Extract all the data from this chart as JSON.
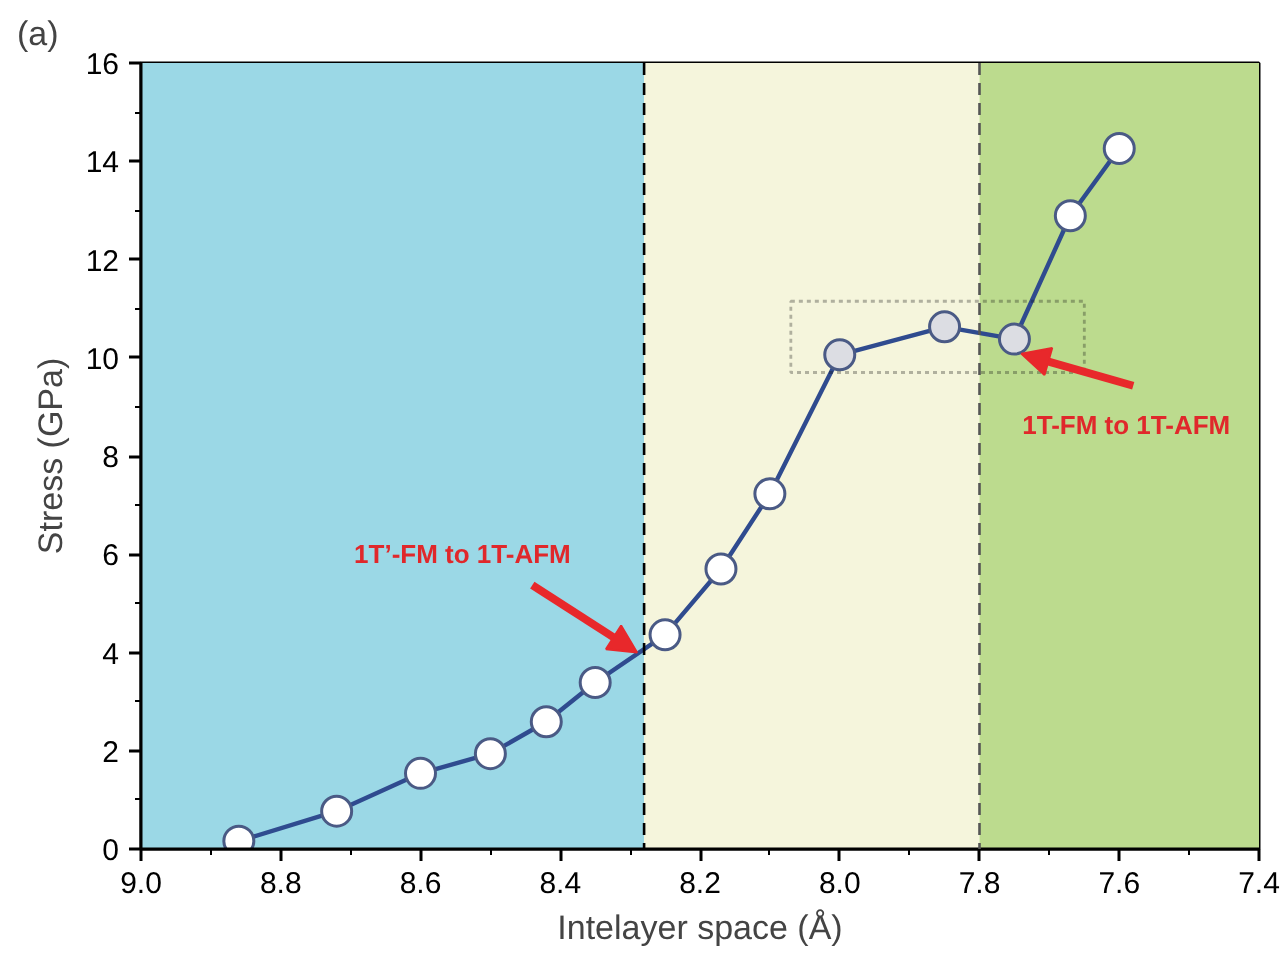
{
  "chart_data": {
    "type": "line",
    "xlabel": "Intelayer space (Å)",
    "ylabel": "Stress (GPa)",
    "x": [
      8.86,
      8.72,
      8.6,
      8.5,
      8.42,
      8.35,
      8.25,
      8.17,
      8.1,
      8.0,
      7.85,
      7.75,
      7.67,
      7.6
    ],
    "series": [
      {
        "color": "#2f4b8f",
        "values": [
          0.16,
          0.77,
          1.54,
          1.94,
          2.59,
          3.39,
          4.36,
          5.7,
          7.23,
          10.06,
          10.63,
          10.38,
          12.89,
          14.26
        ],
        "colors": [
          "#ffffff",
          "#ffffff",
          "#ffffff",
          "#ffffff",
          "#ffffff",
          "#ffffff",
          "#ffffff",
          "#ffffff",
          "#ffffff",
          "#dcdde3",
          "#dcdde3",
          "#dcdde3",
          "#ffffff",
          "#ffffff"
        ]
      }
    ],
    "marker": "circle",
    "line_style": "solid",
    "xlim": [
      9.0,
      7.4
    ],
    "ylim": [
      0,
      16
    ],
    "xticks": [
      {
        "value": 9.0,
        "label": "9.0"
      },
      {
        "value": 8.8,
        "label": "8.8"
      },
      {
        "value": 8.6,
        "label": "8.6"
      },
      {
        "value": 8.4,
        "label": "8.4"
      },
      {
        "value": 8.2,
        "label": "8.2"
      },
      {
        "value": 8.0,
        "label": "8.0"
      },
      {
        "value": 7.8,
        "label": "7.8"
      },
      {
        "value": 7.6,
        "label": "7.6"
      },
      {
        "value": 7.4,
        "label": "7.4"
      }
    ],
    "yticks": [
      0,
      2,
      4,
      6,
      8,
      10,
      12,
      14,
      16
    ],
    "bands": [
      {
        "axis": "x",
        "from": 9.0,
        "to": 8.28,
        "color": "#9bd8e6"
      },
      {
        "axis": "x",
        "from": 8.28,
        "to": 7.8,
        "color": "#f5f5dc"
      },
      {
        "axis": "x",
        "from": 7.8,
        "to": 7.4,
        "color": "#bcdb8e"
      }
    ],
    "ref_lines": [
      {
        "axis": "x",
        "value": 8.28,
        "line_style": "dashed",
        "color": "#000000"
      },
      {
        "axis": "x",
        "value": 7.8,
        "line_style": "dashed",
        "color": "#555555"
      }
    ],
    "annotations": [
      "(a)",
      {
        "text": "1T’-FM to 1T-AFM",
        "x": 8.29,
        "y": 4.0
      },
      {
        "text": "1T-FM to 1T-AFM",
        "x": 7.75,
        "y": 10.38
      }
    ],
    "grid": false
  }
}
